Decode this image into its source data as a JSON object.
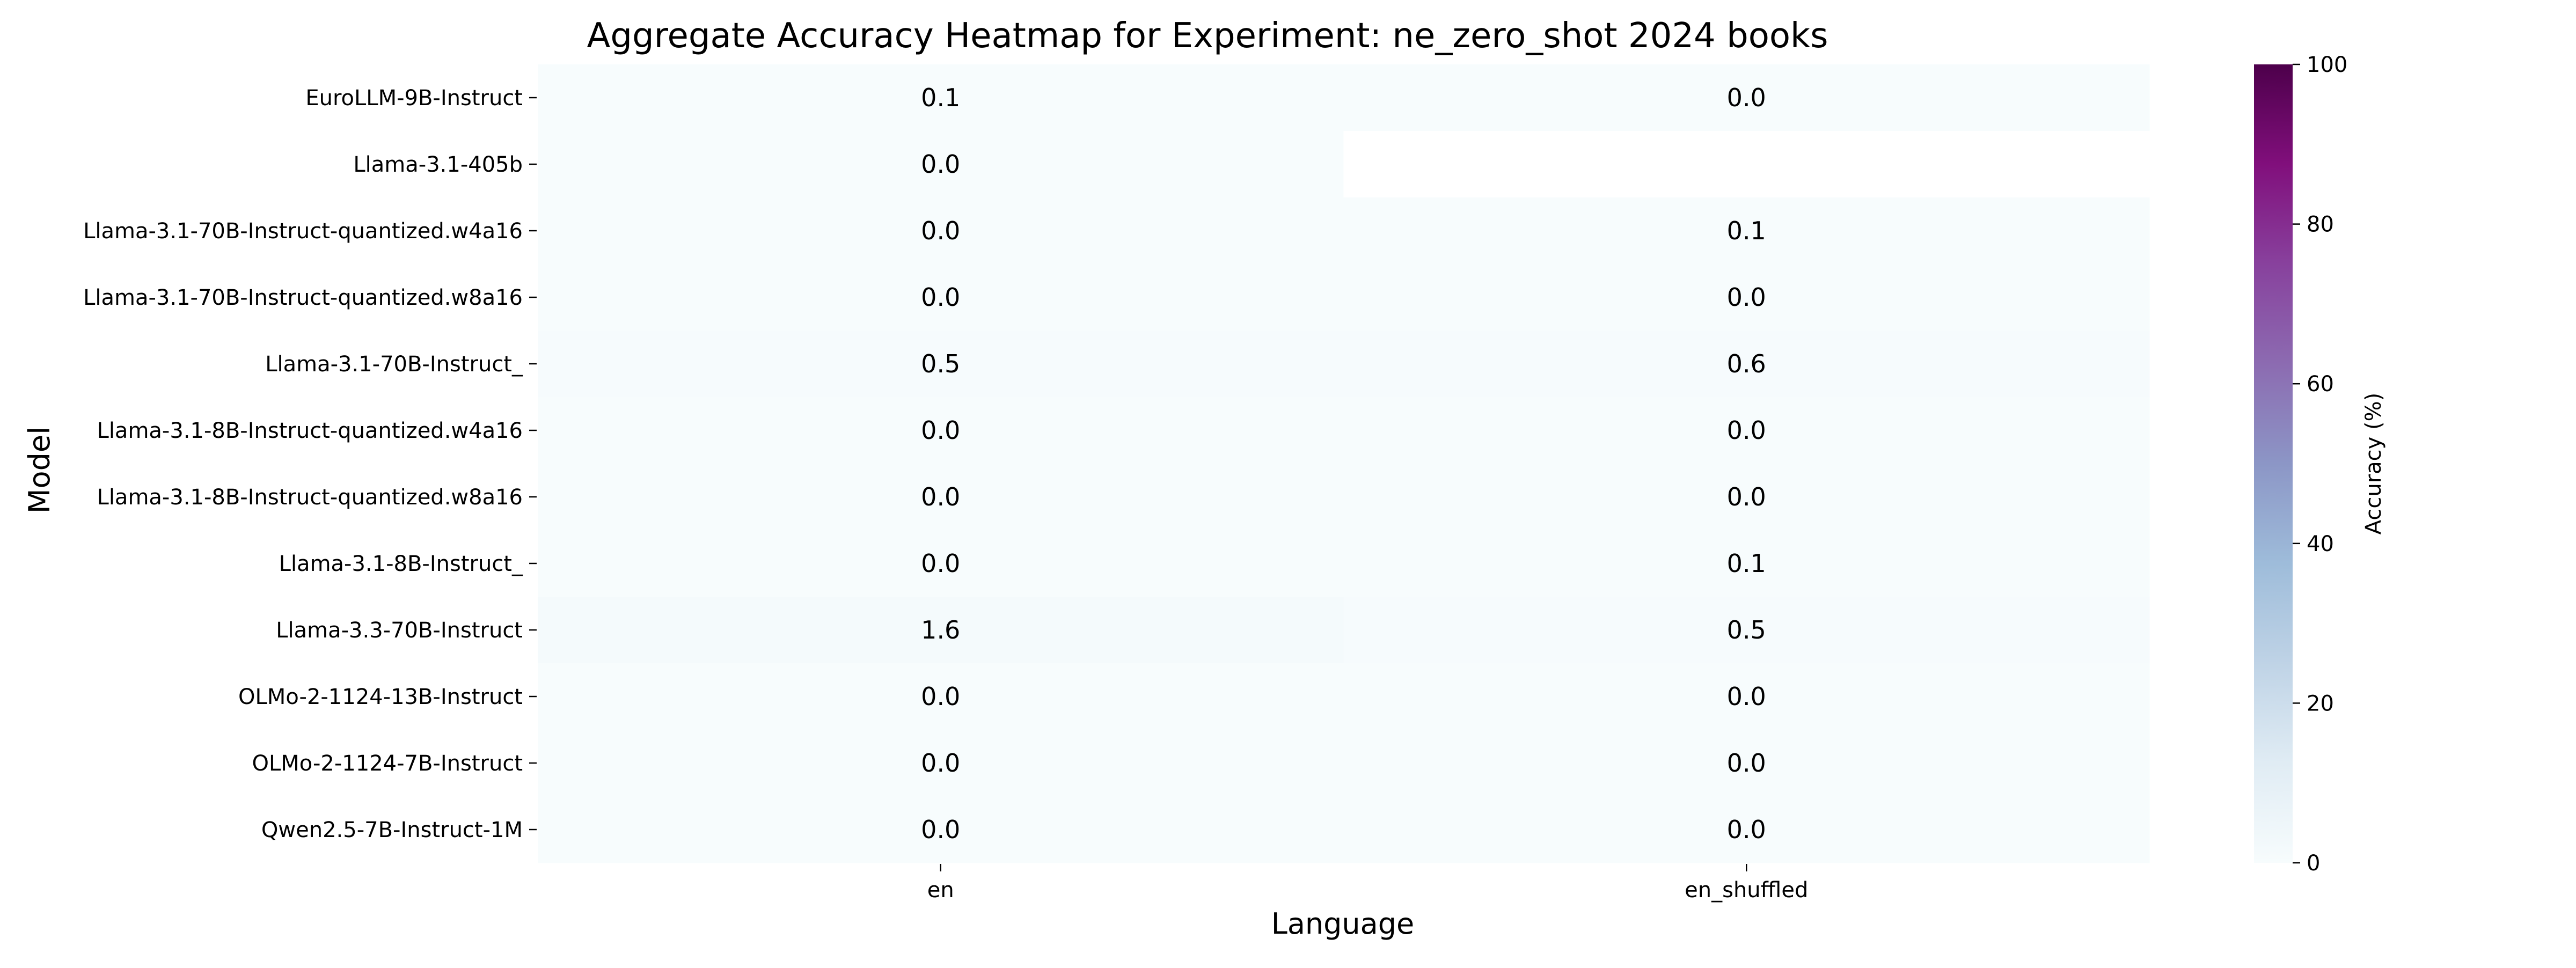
{
  "chart_data": {
    "type": "heatmap",
    "title": "Aggregate Accuracy Heatmap for Experiment: ne_zero_shot 2024 books",
    "xlabel": "Language",
    "ylabel": "Model",
    "x_categories": [
      "en",
      "en_shuffled"
    ],
    "y_categories": [
      "EuroLLM-9B-Instruct",
      "Llama-3.1-405b",
      "Llama-3.1-70B-Instruct-quantized.w4a16",
      "Llama-3.1-70B-Instruct-quantized.w8a16",
      "Llama-3.1-70B-Instruct_",
      "Llama-3.1-8B-Instruct-quantized.w4a16",
      "Llama-3.1-8B-Instruct-quantized.w8a16",
      "Llama-3.1-8B-Instruct_",
      "Llama-3.3-70B-Instruct",
      "OLMo-2-1124-13B-Instruct",
      "OLMo-2-1124-7B-Instruct",
      "Qwen2.5-7B-Instruct-1M"
    ],
    "values": [
      [
        0.1,
        0.0
      ],
      [
        0.0,
        null
      ],
      [
        0.0,
        0.1
      ],
      [
        0.0,
        0.0
      ],
      [
        0.5,
        0.6
      ],
      [
        0.0,
        0.0
      ],
      [
        0.0,
        0.0
      ],
      [
        0.0,
        0.1
      ],
      [
        1.6,
        0.5
      ],
      [
        0.0,
        0.0
      ],
      [
        0.0,
        0.0
      ],
      [
        0.0,
        0.0
      ]
    ],
    "value_format": "0.0",
    "colorbar": {
      "label": "Accuracy (%)",
      "range": [
        0,
        100
      ],
      "ticks": [
        0,
        20,
        40,
        60,
        80,
        100
      ],
      "colormap": "BuPu",
      "stops": [
        "#f7fcfd",
        "#e0ecf4",
        "#bfd3e6",
        "#9ebcda",
        "#8c96c6",
        "#8c6bb1",
        "#88419d",
        "#810f7c",
        "#4d004b"
      ]
    },
    "grid": false,
    "missing_color": "#ffffff"
  }
}
